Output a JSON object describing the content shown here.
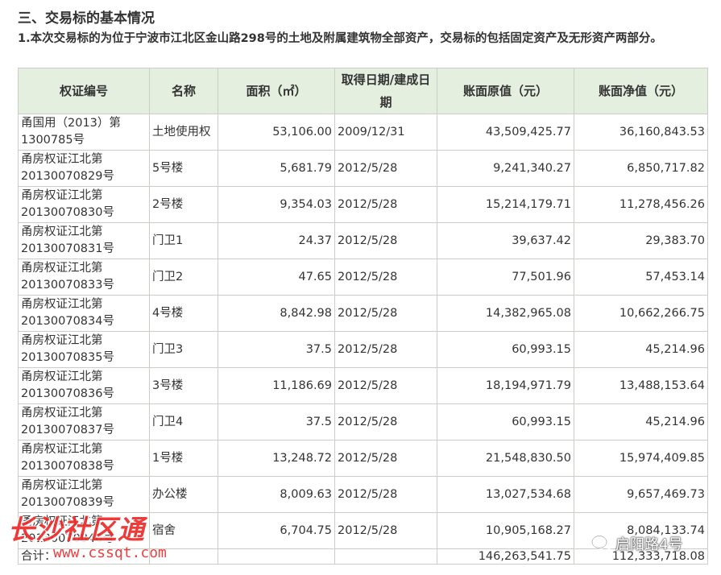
{
  "section": {
    "title": "三、交易标的基本情况",
    "intro": "1.本次交易标的为位于宁波市江北区金山路298号的土地及附属建筑物全部资产，交易标的包括固定资产及无形资产两部分。"
  },
  "table": {
    "headers": [
      "权证编号",
      "名称",
      "面积（㎡）",
      "取得日期/建成日期",
      "账面原值（元）",
      "账面净值（元）"
    ],
    "rows": [
      {
        "cert": "甬国用（2013）第1300785号",
        "name": "土地使用权",
        "area": "53,106.00",
        "date": "2009/12/31",
        "original": "43,509,425.77",
        "net": "36,160,843.53"
      },
      {
        "cert": "甬房权证江北第20130070829号",
        "name": "5号楼",
        "area": "5,681.79",
        "date": "2012/5/28",
        "original": "9,241,340.27",
        "net": "6,850,717.82"
      },
      {
        "cert": "甬房权证江北第20130070830号",
        "name": "2号楼",
        "area": "9,354.03",
        "date": "2012/5/28",
        "original": "15,214,179.71",
        "net": "11,278,456.26"
      },
      {
        "cert": "甬房权证江北第20130070831号",
        "name": "门卫1",
        "area": "24.37",
        "date": "2012/5/28",
        "original": "39,637.42",
        "net": "29,383.70"
      },
      {
        "cert": "甬房权证江北第20130070833号",
        "name": "门卫2",
        "area": "47.65",
        "date": "2012/5/28",
        "original": "77,501.96",
        "net": "57,453.14"
      },
      {
        "cert": "甬房权证江北第20130070834号",
        "name": "4号楼",
        "area": "8,842.98",
        "date": "2012/5/28",
        "original": "14,382,965.08",
        "net": "10,662,266.75"
      },
      {
        "cert": "甬房权证江北第20130070835号",
        "name": "门卫3",
        "area": "37.5",
        "date": "2012/5/28",
        "original": "60,993.15",
        "net": "45,214.96"
      },
      {
        "cert": "甬房权证江北第20130070836号",
        "name": "3号楼",
        "area": "11,186.69",
        "date": "2012/5/28",
        "original": "18,194,971.79",
        "net": "13,488,153.64"
      },
      {
        "cert": "甬房权证江北第20130070837号",
        "name": "门卫4",
        "area": "37.5",
        "date": "2012/5/28",
        "original": "60,993.15",
        "net": "45,214.96"
      },
      {
        "cert": "甬房权证江北第20130070838号",
        "name": "1号楼",
        "area": "13,248.72",
        "date": "2012/5/28",
        "original": "21,548,830.50",
        "net": "15,974,409.85"
      },
      {
        "cert": "甬房权证江北第20130070839号",
        "name": "办公楼",
        "area": "8,009.63",
        "date": "2012/5/28",
        "original": "13,027,534.68",
        "net": "9,657,469.73"
      },
      {
        "cert": "甬房权证江北第20130070840号",
        "name": "宿舍",
        "area": "6,704.75",
        "date": "2012/5/28",
        "original": "10,905,168.27",
        "net": "8,084,133.74"
      }
    ],
    "total": {
      "label": "合计：",
      "original": "146,263,541.75",
      "net": "112,333,718.08"
    }
  },
  "watermarks": {
    "site_name": "长沙社区通",
    "site_url": "www.cssqt.com",
    "wechat_account": "启阳路4号",
    "wechat_icon": "wechat-icon"
  }
}
